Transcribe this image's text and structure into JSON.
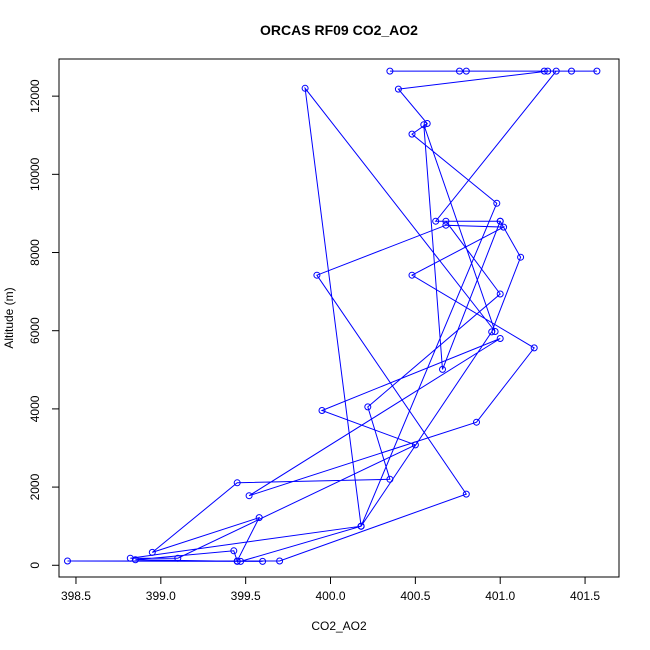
{
  "chart_data": {
    "type": "line",
    "title": "ORCAS RF09 CO2_AO2",
    "xlabel": "CO2_AO2",
    "ylabel": "Altitude (m)",
    "xlim": [
      398.4,
      401.7
    ],
    "ylim": [
      -300,
      12950
    ],
    "x_ticks": [
      398.5,
      399.0,
      399.5,
      400.0,
      400.5,
      401.0,
      401.5
    ],
    "x_tick_labels": [
      "398.5",
      "399.0",
      "399.5",
      "400.0",
      "400.5",
      "401.0",
      "401.5"
    ],
    "y_ticks": [
      0,
      2000,
      4000,
      6000,
      8000,
      10000,
      12000
    ],
    "y_tick_labels": [
      "0",
      "2000",
      "4000",
      "6000",
      "8000",
      "10000",
      "12000"
    ],
    "grid": false,
    "legend": "none",
    "series": [
      {
        "color": "#0000ff",
        "marker": "open-circle",
        "points": [
          [
            399.45,
            100
          ],
          [
            399.6,
            100
          ],
          [
            398.45,
            110
          ],
          [
            399.7,
            110
          ],
          [
            400.8,
            1820
          ],
          [
            399.92,
            7420
          ],
          [
            400.68,
            8700
          ],
          [
            401.02,
            8650
          ],
          [
            400.48,
            7420
          ],
          [
            401.2,
            5560
          ],
          [
            400.86,
            3660
          ],
          [
            399.52,
            1780
          ],
          [
            401.0,
            5800
          ],
          [
            399.95,
            3960
          ],
          [
            400.5,
            3080
          ],
          [
            399.1,
            180
          ],
          [
            398.82,
            180
          ],
          [
            400.18,
            1000
          ],
          [
            400.95,
            5970
          ],
          [
            401.12,
            7880
          ],
          [
            401.0,
            8800
          ],
          [
            400.68,
            8800
          ],
          [
            401.0,
            6940
          ],
          [
            400.22,
            4050
          ],
          [
            400.35,
            2200
          ],
          [
            399.45,
            2110
          ],
          [
            398.95,
            330
          ],
          [
            399.58,
            1220
          ],
          [
            399.45,
            110
          ],
          [
            399.43,
            370
          ],
          [
            398.85,
            140
          ],
          [
            399.47,
            100
          ],
          [
            400.18,
            1000
          ],
          [
            400.98,
            9260
          ],
          [
            400.48,
            11030
          ],
          [
            400.57,
            11300
          ],
          [
            400.4,
            12180
          ],
          [
            401.28,
            12640
          ],
          [
            400.8,
            12640
          ],
          [
            400.35,
            12640
          ],
          [
            401.57,
            12640
          ],
          [
            401.42,
            12640
          ],
          [
            401.26,
            12640
          ],
          [
            400.76,
            12640
          ],
          [
            401.33,
            12640
          ],
          [
            400.62,
            8800
          ],
          [
            401.0,
            8800
          ],
          [
            400.66,
            5010
          ],
          [
            400.55,
            11270
          ],
          [
            400.97,
            5980
          ],
          [
            399.85,
            12200
          ],
          [
            400.18,
            1000
          ]
        ]
      }
    ]
  }
}
